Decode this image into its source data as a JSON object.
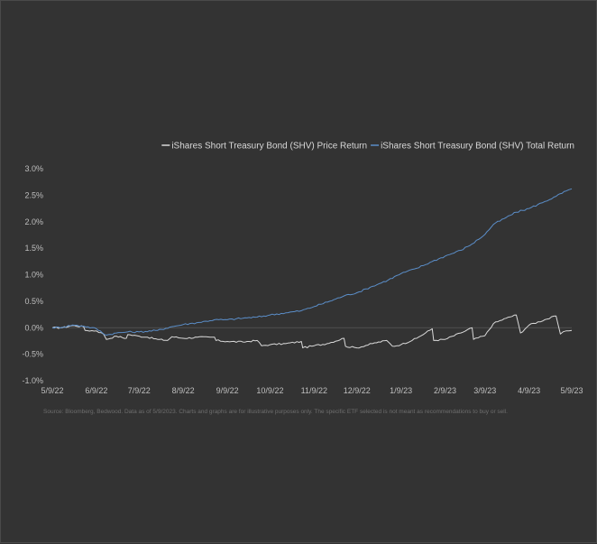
{
  "chart_data": {
    "type": "line",
    "title": "",
    "xlabel": "",
    "ylabel": "",
    "y_ticks": [
      "3.0%",
      "2.5%",
      "2.0%",
      "1.5%",
      "1.0%",
      "0.5%",
      "0.0%",
      "-0.5%",
      "-1.0%"
    ],
    "ylim": [
      -1.0,
      3.0
    ],
    "x_ticks": [
      "5/9/22",
      "6/9/22",
      "7/9/22",
      "8/9/22",
      "9/9/22",
      "10/9/22",
      "11/9/22",
      "12/9/22",
      "1/9/23",
      "2/9/23",
      "3/9/23",
      "4/9/23",
      "5/9/23"
    ],
    "xlim": [
      "5/9/22",
      "5/9/23"
    ],
    "legend_position": "top-right",
    "grid": false,
    "colors": {
      "price_return": "#d9d9d9",
      "total_return": "#5b8ec9",
      "zero_line": "#595959"
    },
    "series": [
      {
        "name": "iShares Short Treasury Bond (SHV) Price Return",
        "key": "price_return",
        "points": [
          [
            "5/9/22",
            0.0
          ],
          [
            "5/16/22",
            0.0
          ],
          [
            "5/23/22",
            0.04
          ],
          [
            "5/31/22",
            0.02
          ],
          [
            "6/1/22",
            -0.05
          ],
          [
            "6/9/22",
            -0.06
          ],
          [
            "6/14/22",
            -0.12
          ],
          [
            "6/16/22",
            -0.22
          ],
          [
            "6/23/22",
            -0.16
          ],
          [
            "6/30/22",
            -0.2
          ],
          [
            "7/1/22",
            -0.13
          ],
          [
            "7/9/22",
            -0.16
          ],
          [
            "7/15/22",
            -0.18
          ],
          [
            "7/22/22",
            -0.22
          ],
          [
            "7/29/22",
            -0.24
          ],
          [
            "8/1/22",
            -0.17
          ],
          [
            "8/9/22",
            -0.2
          ],
          [
            "8/19/22",
            -0.18
          ],
          [
            "8/31/22",
            -0.18
          ],
          [
            "9/1/22",
            -0.24
          ],
          [
            "9/9/22",
            -0.26
          ],
          [
            "9/20/22",
            -0.27
          ],
          [
            "9/30/22",
            -0.24
          ],
          [
            "10/3/22",
            -0.34
          ],
          [
            "10/9/22",
            -0.32
          ],
          [
            "10/20/22",
            -0.3
          ],
          [
            "10/31/22",
            -0.26
          ],
          [
            "11/1/22",
            -0.38
          ],
          [
            "11/9/22",
            -0.34
          ],
          [
            "11/18/22",
            -0.3
          ],
          [
            "11/30/22",
            -0.2
          ],
          [
            "12/1/22",
            -0.35
          ],
          [
            "12/9/22",
            -0.38
          ],
          [
            "12/20/22",
            -0.3
          ],
          [
            "12/30/22",
            -0.24
          ],
          [
            "1/3/23",
            -0.35
          ],
          [
            "1/9/23",
            -0.32
          ],
          [
            "1/20/23",
            -0.2
          ],
          [
            "1/31/23",
            -0.02
          ],
          [
            "2/1/23",
            -0.24
          ],
          [
            "2/9/23",
            -0.22
          ],
          [
            "2/20/23",
            -0.1
          ],
          [
            "2/28/23",
            0.0
          ],
          [
            "3/1/23",
            -0.22
          ],
          [
            "3/9/23",
            -0.15
          ],
          [
            "3/15/23",
            0.08
          ],
          [
            "3/24/23",
            0.18
          ],
          [
            "3/31/23",
            0.24
          ],
          [
            "4/3/23",
            -0.1
          ],
          [
            "4/9/23",
            0.05
          ],
          [
            "4/20/23",
            0.15
          ],
          [
            "4/28/23",
            0.22
          ],
          [
            "5/1/23",
            -0.12
          ],
          [
            "5/5/23",
            -0.06
          ],
          [
            "5/9/23",
            -0.05
          ]
        ]
      },
      {
        "name": "iShares Short Treasury Bond (SHV) Total Return",
        "key": "total_return",
        "points": [
          [
            "5/9/22",
            0.0
          ],
          [
            "5/16/22",
            0.01
          ],
          [
            "5/23/22",
            0.05
          ],
          [
            "5/31/22",
            0.03
          ],
          [
            "6/9/22",
            -0.02
          ],
          [
            "6/16/22",
            -0.14
          ],
          [
            "6/23/22",
            -0.1
          ],
          [
            "7/1/22",
            -0.08
          ],
          [
            "7/9/22",
            -0.08
          ],
          [
            "7/22/22",
            -0.05
          ],
          [
            "8/1/22",
            0.02
          ],
          [
            "8/9/22",
            0.06
          ],
          [
            "8/20/22",
            0.1
          ],
          [
            "8/31/22",
            0.15
          ],
          [
            "9/9/22",
            0.15
          ],
          [
            "9/20/22",
            0.18
          ],
          [
            "9/30/22",
            0.2
          ],
          [
            "10/9/22",
            0.24
          ],
          [
            "10/20/22",
            0.28
          ],
          [
            "10/31/22",
            0.32
          ],
          [
            "11/9/22",
            0.4
          ],
          [
            "11/20/22",
            0.5
          ],
          [
            "11/30/22",
            0.6
          ],
          [
            "12/9/22",
            0.66
          ],
          [
            "12/20/22",
            0.78
          ],
          [
            "12/31/22",
            0.9
          ],
          [
            "1/9/23",
            1.02
          ],
          [
            "1/20/23",
            1.12
          ],
          [
            "1/31/23",
            1.25
          ],
          [
            "2/9/23",
            1.35
          ],
          [
            "2/20/23",
            1.46
          ],
          [
            "2/28/23",
            1.58
          ],
          [
            "3/9/23",
            1.76
          ],
          [
            "3/15/23",
            1.95
          ],
          [
            "3/24/23",
            2.08
          ],
          [
            "3/31/23",
            2.18
          ],
          [
            "4/9/23",
            2.25
          ],
          [
            "4/20/23",
            2.38
          ],
          [
            "4/28/23",
            2.48
          ],
          [
            "5/5/23",
            2.58
          ],
          [
            "5/9/23",
            2.62
          ]
        ]
      }
    ],
    "source_note": "Source: Bloomberg, Bedwood. Data as of 5/9/2023. Charts and graphs are for illustrative purposes only. The specific ETF selected is not meant as recommendations to buy or sell."
  }
}
